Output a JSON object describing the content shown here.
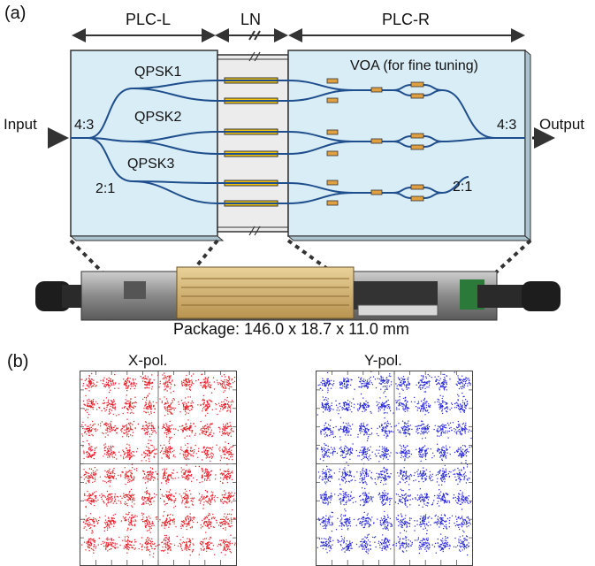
{
  "panel_a": {
    "label": "(a)",
    "sections": {
      "left": "PLC-L",
      "middle": "LN",
      "right": "PLC-R"
    },
    "input_label": "Input",
    "output_label": "Output",
    "splitter_in": "4:3",
    "splitter_out": "4:3",
    "split_left": "2:1",
    "split_right": "2:1",
    "qpsk": [
      "QPSK1",
      "QPSK2",
      "QPSK3"
    ],
    "voa_label": "VOA (for fine tuning)",
    "package_caption": "Package: 146.0 x 18.7 x 11.0 mm",
    "colors": {
      "plc_fill": "#d9edf7",
      "ln_fill": "#ececec",
      "electrode": "#f2c40f",
      "voa": "#e0a040",
      "waveguide": "#1f4e8c"
    }
  },
  "panel_b": {
    "label": "(b)",
    "x_title": "X-pol.",
    "y_title": "Y-pol.",
    "colors": {
      "x": "#e8202a",
      "y": "#2a2ad8"
    }
  },
  "chart_data": [
    {
      "type": "scatter",
      "title": "X-pol.",
      "constellation": "64-QAM",
      "grid": [
        8,
        8
      ],
      "color": "#e8202a"
    },
    {
      "type": "scatter",
      "title": "Y-pol.",
      "constellation": "64-QAM",
      "grid": [
        8,
        8
      ],
      "color": "#2a2ad8"
    }
  ]
}
